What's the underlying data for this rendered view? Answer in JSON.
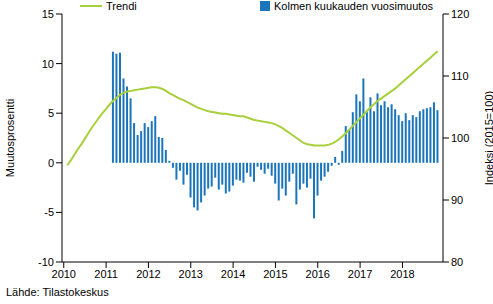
{
  "chart_data": {
    "type": "bar",
    "y_label": "Muutosprosentti",
    "y2_label": "Indeksi (2015=100)",
    "source": "Lähde: Tilastokeskus",
    "legend": "top",
    "grid": false,
    "categories": [
      "2010",
      null,
      null,
      null,
      null,
      null,
      null,
      null,
      null,
      null,
      null,
      null,
      "2011",
      null,
      null,
      null,
      null,
      null,
      null,
      null,
      null,
      null,
      null,
      null,
      "2012",
      null,
      null,
      null,
      null,
      null,
      null,
      null,
      null,
      null,
      null,
      null,
      "2013",
      null,
      null,
      null,
      null,
      null,
      null,
      null,
      null,
      null,
      null,
      null,
      "2014",
      null,
      null,
      null,
      null,
      null,
      null,
      null,
      null,
      null,
      null,
      null,
      "2015",
      null,
      null,
      null,
      null,
      null,
      null,
      null,
      null,
      null,
      null,
      null,
      "2016",
      null,
      null,
      null,
      null,
      null,
      null,
      null,
      null,
      null,
      null,
      null,
      "2017",
      null,
      null,
      null,
      null,
      null,
      null,
      null,
      null,
      null,
      null,
      null,
      "2018",
      null,
      null,
      null,
      null,
      null,
      null,
      null,
      null,
      null,
      null,
      null
    ],
    "series": [
      {
        "name": "Kolmen kuukauden vuosimuutos",
        "type": "bar",
        "color": "#1b75bb",
        "values": [
          null,
          null,
          null,
          null,
          null,
          null,
          null,
          null,
          null,
          null,
          null,
          null,
          null,
          null,
          11.2,
          11.0,
          11.1,
          8.5,
          7.7,
          6.5,
          4.0,
          2.8,
          3.2,
          4.0,
          3.6,
          4.2,
          4.7,
          2.6,
          2.5,
          1.3,
          0.2,
          -0.5,
          -1.7,
          -0.8,
          -2.2,
          -1.2,
          -3.5,
          -4.5,
          -4.8,
          -4.0,
          -3.3,
          -2.6,
          -2.4,
          -1.5,
          -2.7,
          -2.2,
          -3.1,
          -2.9,
          -2.3,
          -1.7,
          -1.8,
          -2.0,
          -1.0,
          -1.4,
          -1.9,
          -0.4,
          -0.7,
          -1.1,
          -0.6,
          -1.3,
          -2.1,
          -3.8,
          -2.6,
          -3.3,
          -1.9,
          -1.1,
          -4.2,
          -2.7,
          -2.1,
          -2.5,
          -1.6,
          -5.6,
          -3.3,
          -1.8,
          -1.4,
          -0.9,
          -0.3,
          0.6,
          -0.2,
          1.2,
          3.7,
          3.4,
          5.1,
          6.9,
          6.2,
          8.5,
          5.1,
          6.6,
          5.2,
          7.0,
          5.8,
          6.2,
          5.6,
          5.9,
          5.4,
          4.8,
          4.2,
          5.0,
          4.3,
          4.8,
          4.6,
          5.2,
          5.4,
          5.5,
          5.6,
          6.1,
          5.3,
          null
        ]
      },
      {
        "name": "Trendi",
        "type": "line",
        "axis": "y2",
        "color": "#a8cf3c",
        "values": [
          null,
          95.6,
          96.4,
          97.3,
          98.2,
          99.0,
          99.9,
          100.8,
          101.7,
          102.5,
          103.3,
          104.0,
          104.7,
          105.4,
          106.0,
          106.5,
          107.0,
          107.3,
          107.5,
          107.6,
          107.7,
          107.8,
          107.9,
          108.0,
          108.1,
          108.2,
          108.2,
          108.1,
          107.9,
          107.6,
          107.2,
          106.9,
          106.6,
          106.3,
          106.1,
          105.8,
          105.5,
          105.2,
          104.9,
          104.7,
          104.5,
          104.3,
          104.2,
          104.1,
          104.0,
          103.9,
          103.9,
          103.8,
          103.7,
          103.6,
          103.5,
          103.5,
          103.3,
          103.1,
          102.9,
          102.8,
          102.7,
          102.6,
          102.5,
          102.4,
          102.2,
          101.9,
          101.6,
          101.2,
          100.8,
          100.4,
          100.0,
          99.6,
          99.2,
          99.0,
          98.9,
          98.8,
          98.8,
          98.8,
          98.8,
          98.9,
          99.1,
          99.4,
          99.8,
          100.3,
          100.8,
          101.4,
          102.0,
          102.6,
          103.2,
          103.8,
          104.4,
          105.0,
          105.5,
          106.0,
          106.4,
          106.8,
          107.2,
          107.6,
          108.0,
          108.5,
          109.0,
          109.5,
          110.0,
          110.5,
          111.0,
          111.5,
          112.0,
          112.5,
          113.0,
          113.5,
          114.0,
          null
        ]
      }
    ],
    "ylim": [
      -10,
      15
    ],
    "yticks": [
      -10,
      -5,
      0,
      5,
      10,
      15
    ],
    "y2lim": [
      80,
      120
    ],
    "y2ticks": [
      80,
      90,
      100,
      110,
      120
    ]
  }
}
